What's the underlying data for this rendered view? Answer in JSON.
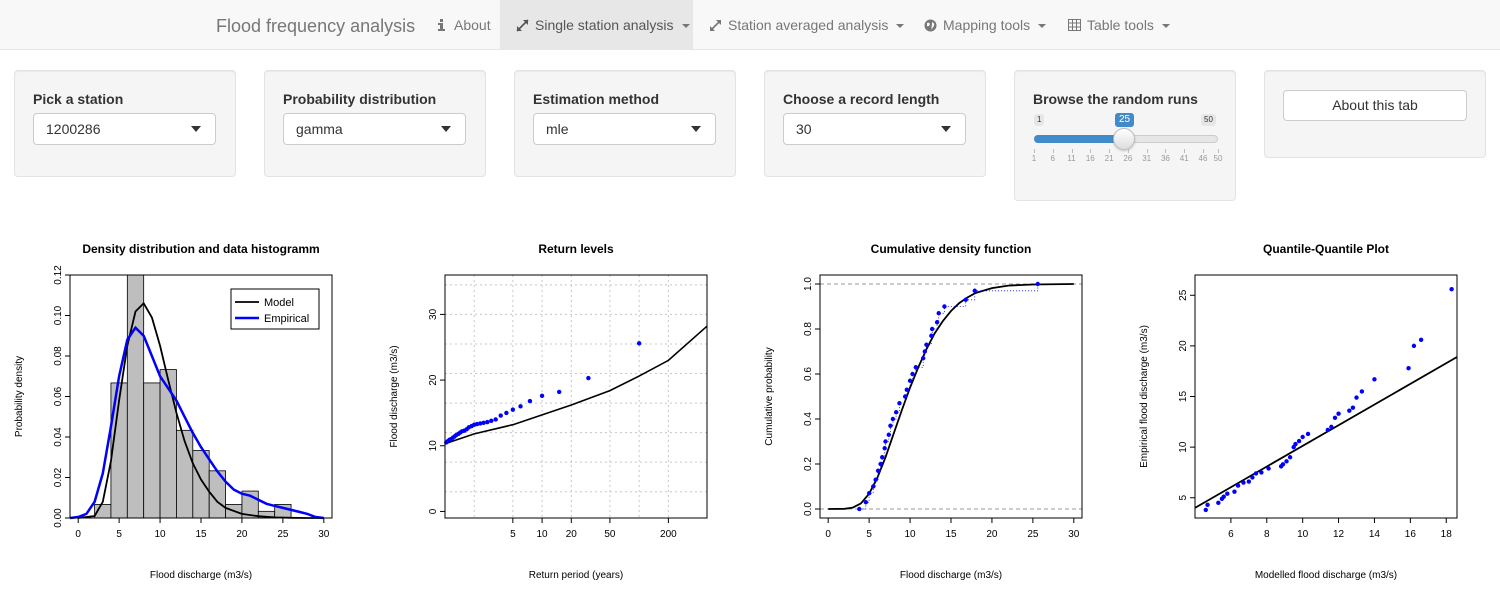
{
  "navbar": {
    "brand": "Flood frequency analysis",
    "items": [
      {
        "label": "About",
        "icon": "info-icon"
      },
      {
        "label": "Single station analysis",
        "icon": "expand-icon",
        "dropdown": true,
        "active": true
      },
      {
        "label": "Station averaged analysis",
        "icon": "resize-icon",
        "dropdown": true
      },
      {
        "label": "Mapping tools",
        "icon": "globe-icon",
        "dropdown": true
      },
      {
        "label": "Table tools",
        "icon": "table-icon",
        "dropdown": true
      }
    ]
  },
  "controls": {
    "station": {
      "label": "Pick a station",
      "value": "1200286"
    },
    "distribution": {
      "label": "Probability distribution",
      "value": "gamma"
    },
    "method": {
      "label": "Estimation method",
      "value": "mle"
    },
    "record_length": {
      "label": "Choose a record length",
      "value": "30"
    },
    "random_runs": {
      "label": "Browse the random runs",
      "min": "1",
      "max": "50",
      "value": "25",
      "ticks": [
        "1",
        "6",
        "11",
        "16",
        "21",
        "26",
        "31",
        "36",
        "41",
        "46",
        "50"
      ]
    },
    "about_button": "About this tab"
  },
  "chart_data": [
    {
      "type": "bar",
      "title": "Density distribution and data histogramm",
      "xlabel": "Flood discharge (m3/s)",
      "ylabel": "Probability density",
      "xlim": [
        -1,
        31
      ],
      "ylim": [
        0,
        0.12
      ],
      "xticks": [
        "0",
        "5",
        "10",
        "15",
        "20",
        "25",
        "30"
      ],
      "yticks": [
        "0.00",
        "0.02",
        "0.04",
        "0.06",
        "0.08",
        "0.10",
        "0.12"
      ],
      "bins": [
        [
          2,
          4
        ],
        [
          4,
          6
        ],
        [
          6,
          8
        ],
        [
          8,
          10
        ],
        [
          10,
          12
        ],
        [
          12,
          14
        ],
        [
          14,
          16
        ],
        [
          16,
          18
        ],
        [
          18,
          20
        ],
        [
          20,
          22
        ],
        [
          22,
          24
        ],
        [
          24,
          26
        ]
      ],
      "values": [
        0.0067,
        0.0667,
        0.1233,
        0.0667,
        0.0733,
        0.0433,
        0.0333,
        0.0233,
        0.0067,
        0.0133,
        0.0033,
        0.0067
      ],
      "legend": [
        "Model",
        "Empirical"
      ],
      "series": [
        {
          "name": "Model",
          "color": "#000000",
          "x": [
            0,
            2,
            3,
            4,
            5,
            6,
            7,
            8,
            9,
            10,
            11,
            12,
            13,
            14,
            15,
            16,
            17,
            18,
            20,
            22,
            24,
            26,
            28,
            30
          ],
          "y": [
            0,
            0.001,
            0.008,
            0.028,
            0.058,
            0.085,
            0.102,
            0.106,
            0.099,
            0.085,
            0.068,
            0.052,
            0.038,
            0.027,
            0.019,
            0.013,
            0.008,
            0.005,
            0.002,
            0.0009,
            0.0003,
            0.0001,
            0,
            0
          ]
        },
        {
          "name": "Empirical",
          "color": "#0000ff",
          "x": [
            -1,
            0,
            1,
            2,
            3,
            4,
            5,
            6,
            7,
            8,
            9,
            10,
            11,
            12,
            13,
            14,
            15,
            16,
            17,
            18,
            19,
            20,
            21,
            22,
            23,
            24,
            25,
            26,
            27,
            28,
            29,
            30
          ],
          "y": [
            0,
            0.0005,
            0.002,
            0.008,
            0.022,
            0.045,
            0.07,
            0.088,
            0.094,
            0.09,
            0.08,
            0.07,
            0.064,
            0.058,
            0.05,
            0.042,
            0.035,
            0.029,
            0.023,
            0.018,
            0.014,
            0.012,
            0.011,
            0.009,
            0.007,
            0.006,
            0.005,
            0.004,
            0.003,
            0.002,
            0.0005,
            0
          ]
        }
      ]
    },
    {
      "type": "scatter",
      "title": "Return levels",
      "xlabel": "Return period (years)",
      "ylabel": "Flood discharge (m3/s)",
      "x_scale": "log",
      "xlim": [
        1,
        500
      ],
      "ylim": [
        -1,
        36
      ],
      "xticks": [
        "5",
        "10",
        "20",
        "50",
        "200"
      ],
      "yticks": [
        "0",
        "10",
        "20",
        "30"
      ],
      "points_x": [
        1.03,
        1.07,
        1.11,
        1.15,
        1.2,
        1.25,
        1.3,
        1.37,
        1.43,
        1.5,
        1.58,
        1.67,
        1.76,
        1.88,
        2.0,
        2.14,
        2.31,
        2.5,
        2.73,
        3.0,
        3.33,
        3.75,
        4.29,
        5.0,
        6.0,
        7.5,
        10,
        15,
        30,
        100
      ],
      "points_y": [
        10.5,
        10.7,
        10.9,
        11.0,
        11.2,
        11.4,
        11.6,
        11.8,
        12.0,
        12.2,
        12.3,
        12.5,
        12.8,
        13.0,
        13.2,
        13.3,
        13.4,
        13.5,
        13.6,
        13.8,
        14.0,
        14.6,
        15.0,
        15.5,
        16.0,
        16.8,
        17.6,
        18.2,
        20.3,
        25.6
      ],
      "curve_x": [
        1,
        2,
        5,
        10,
        20,
        50,
        100,
        200,
        500
      ],
      "curve_y": [
        10.3,
        11.8,
        13.2,
        14.7,
        16.2,
        18.4,
        20.6,
        23.0,
        28.2
      ]
    },
    {
      "type": "line",
      "title": "Cumulative density function",
      "xlabel": "Flood discharge (m3/s)",
      "ylabel": "Cumulative probability",
      "xlim": [
        -1,
        31
      ],
      "ylim": [
        -0.04,
        1.04
      ],
      "xticks": [
        "0",
        "5",
        "10",
        "15",
        "20",
        "25",
        "30"
      ],
      "yticks": [
        "0.0",
        "0.2",
        "0.4",
        "0.6",
        "0.8",
        "1.0"
      ],
      "model_x": [
        0,
        2,
        3,
        4,
        5,
        6,
        7,
        8,
        9,
        10,
        11,
        12,
        13,
        14,
        15,
        16,
        17,
        18,
        20,
        22,
        25,
        30
      ],
      "model_y": [
        0,
        0.001,
        0.006,
        0.025,
        0.068,
        0.138,
        0.23,
        0.335,
        0.44,
        0.54,
        0.63,
        0.71,
        0.78,
        0.835,
        0.88,
        0.915,
        0.94,
        0.96,
        0.982,
        0.993,
        0.998,
        1.0
      ],
      "points_x": [
        3.8,
        4.6,
        5.0,
        5.5,
        5.8,
        6.1,
        6.4,
        6.6,
        6.9,
        7.0,
        7.4,
        7.6,
        7.9,
        8.3,
        8.7,
        9.4,
        9.6,
        10.0,
        10.3,
        10.7,
        11.6,
        11.8,
        12.0,
        12.6,
        12.7,
        13.3,
        13.5,
        14.2,
        16.8,
        17.9,
        25.6
      ],
      "points_y": [
        0.0,
        0.03,
        0.07,
        0.1,
        0.13,
        0.17,
        0.2,
        0.23,
        0.27,
        0.3,
        0.33,
        0.37,
        0.4,
        0.43,
        0.47,
        0.5,
        0.53,
        0.57,
        0.6,
        0.63,
        0.67,
        0.7,
        0.73,
        0.77,
        0.8,
        0.83,
        0.87,
        0.9,
        0.93,
        0.97,
        1.0
      ]
    },
    {
      "type": "scatter",
      "title": "Quantile-Quantile Plot",
      "xlabel": "Modelled flood discharge (m3/s)",
      "ylabel": "Empirical flood discharge (m3/s)",
      "xlim": [
        4,
        18.6
      ],
      "ylim": [
        3,
        27
      ],
      "xticks": [
        "6",
        "8",
        "10",
        "12",
        "14",
        "16",
        "18"
      ],
      "yticks": [
        "5",
        "10",
        "15",
        "20",
        "25"
      ],
      "points_x": [
        4.6,
        4.7,
        5.3,
        5.5,
        5.6,
        5.8,
        6.2,
        6.4,
        6.7,
        7.0,
        7.2,
        7.4,
        7.7,
        8.1,
        8.8,
        8.9,
        9.1,
        9.3,
        9.5,
        9.6,
        9.8,
        10.0,
        10.3,
        11.4,
        11.6,
        11.8,
        12.0,
        12.6,
        12.8,
        13.0,
        13.3,
        14.0,
        15.9,
        16.2,
        16.6,
        18.3
      ],
      "points_y": [
        3.8,
        4.3,
        4.5,
        4.9,
        5.1,
        5.4,
        5.6,
        6.2,
        6.5,
        6.6,
        7.0,
        7.4,
        7.5,
        7.9,
        8.1,
        8.3,
        8.6,
        9.0,
        10.0,
        10.3,
        10.6,
        11.0,
        11.3,
        11.7,
        12.0,
        12.9,
        13.3,
        13.6,
        13.9,
        14.9,
        15.5,
        16.7,
        17.8,
        20.0,
        20.6,
        25.6
      ],
      "line_x": [
        4,
        18.6
      ],
      "line_y": [
        4.0,
        18.9
      ]
    }
  ]
}
